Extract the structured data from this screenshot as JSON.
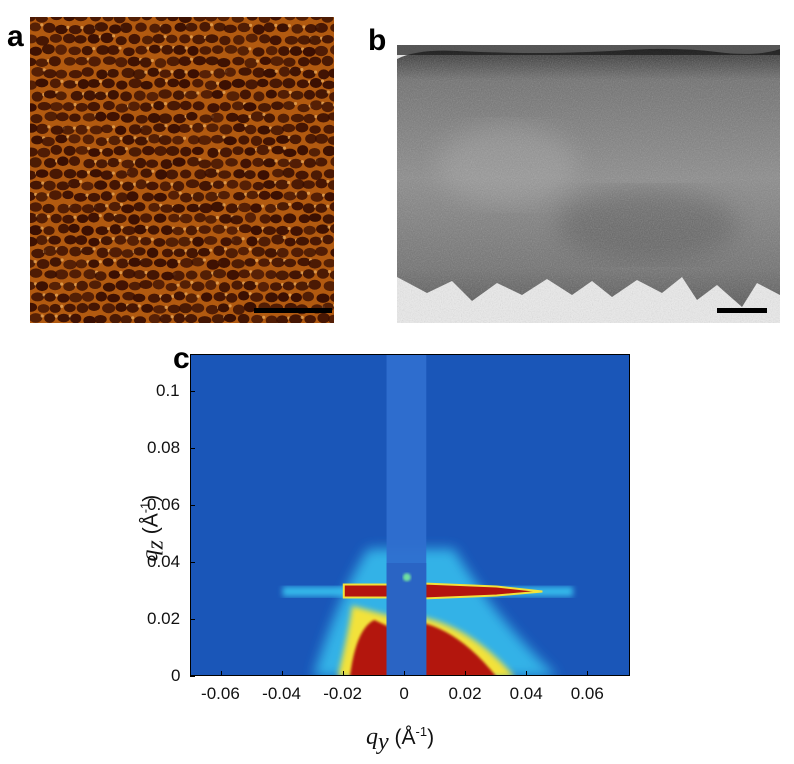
{
  "panels": {
    "a": {
      "letter": "a",
      "kind": "AFM height image, hexagonal pore array"
    },
    "b": {
      "letter": "b",
      "kind": "TEM cross-section"
    },
    "c": {
      "letter": "c",
      "kind": "GISAXS pattern"
    }
  },
  "colors": {
    "afm_base": "#b25a10",
    "afm_pore": "#3a0f02",
    "afm_highlight": "#f0b060",
    "tem_dark": "#333333",
    "tem_light": "#e8e8e8",
    "gisaxs_background": "#1a56b8",
    "gisaxs_beamstop": "#2f6fcf",
    "gisaxs_cyan": "#39c3f0",
    "gisaxs_yellow": "#f2e23a",
    "gisaxs_red": "#b3140f"
  },
  "chart_data": {
    "type": "heatmap",
    "xlabel_var": "q",
    "xlabel_sub": "y",
    "xlabel_unit": "(Å",
    "xlabel_sup": "-1",
    "xlabel_close": ")",
    "ylabel_var": "q",
    "ylabel_sub": "z",
    "ylabel_unit": "(Å",
    "ylabel_sup": "-1",
    "ylabel_close": ")",
    "xlim": [
      -0.07,
      0.074
    ],
    "ylim": [
      0,
      0.113
    ],
    "x_ticks": [
      {
        "value": -0.06,
        "label": "-0.06"
      },
      {
        "value": -0.04,
        "label": "-0.04"
      },
      {
        "value": -0.02,
        "label": "-0.02"
      },
      {
        "value": 0,
        "label": "0"
      },
      {
        "value": 0.02,
        "label": "0.02"
      },
      {
        "value": 0.04,
        "label": "0.04"
      },
      {
        "value": 0.06,
        "label": "0.06"
      }
    ],
    "y_ticks": [
      {
        "value": 0,
        "label": "0"
      },
      {
        "value": 0.02,
        "label": "0.02"
      },
      {
        "value": 0.04,
        "label": "0.04"
      },
      {
        "value": 0.06,
        "label": "0.06"
      },
      {
        "value": 0.08,
        "label": "0.08"
      },
      {
        "value": 0.1,
        "label": "0.1"
      }
    ],
    "features": {
      "bragg_rod_qy": [
        -0.016,
        0.016
      ],
      "bragg_peak_qz": 0.03,
      "beamstop_qy": [
        -0.006,
        0.007
      ]
    }
  }
}
